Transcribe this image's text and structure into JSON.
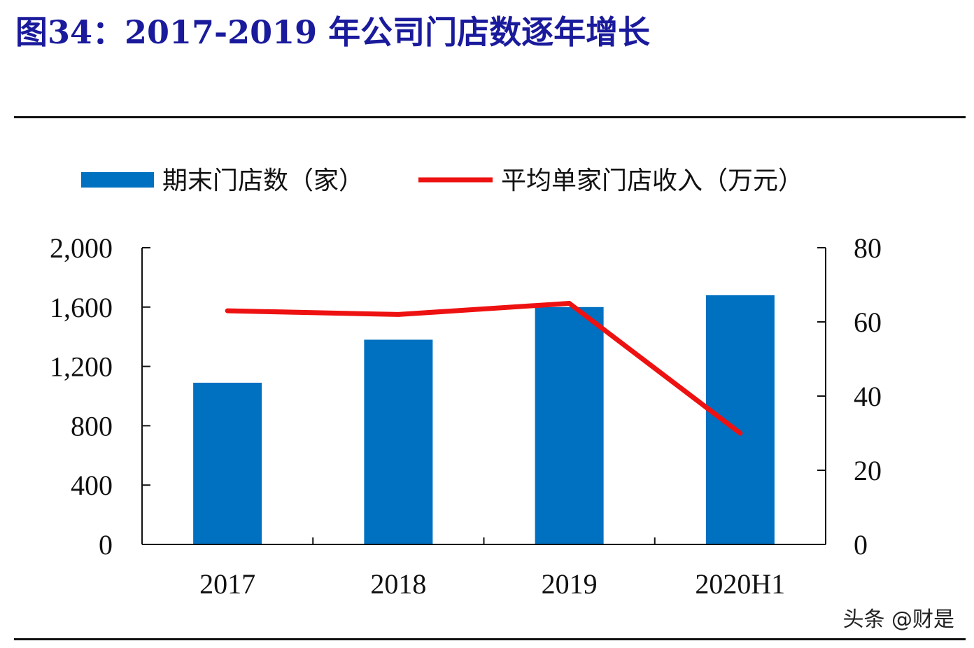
{
  "header": {
    "title": "图34：2017-2019 年公司门店数逐年增长"
  },
  "watermark": {
    "text": "头条 @财是"
  },
  "colors": {
    "bar": "#0070c0",
    "line": "#ee1111",
    "title": "#1a1a9c",
    "axis": "#111111"
  },
  "chart_data": {
    "type": "bar",
    "title": "",
    "categories": [
      "2017",
      "2018",
      "2019",
      "2020H1"
    ],
    "series": [
      {
        "name": "期末门店数（家）",
        "type": "bar",
        "axis": "left",
        "values": [
          1090,
          1380,
          1600,
          1680
        ]
      },
      {
        "name": "平均单家门店收入（万元）",
        "type": "line",
        "axis": "right",
        "values": [
          63,
          62,
          65,
          30
        ]
      }
    ],
    "y_left": {
      "ylim": [
        0,
        2000
      ],
      "ticks": [
        0,
        400,
        800,
        1200,
        1600,
        2000
      ],
      "tick_labels": [
        "0",
        "400",
        "800",
        "1,200",
        "1,600",
        "2,000"
      ]
    },
    "y_right": {
      "ylim": [
        0,
        80
      ],
      "ticks": [
        0,
        20,
        40,
        60,
        80
      ],
      "tick_labels": [
        "0",
        "20",
        "40",
        "60",
        "80"
      ]
    },
    "legend_position": "top",
    "grid": false
  }
}
